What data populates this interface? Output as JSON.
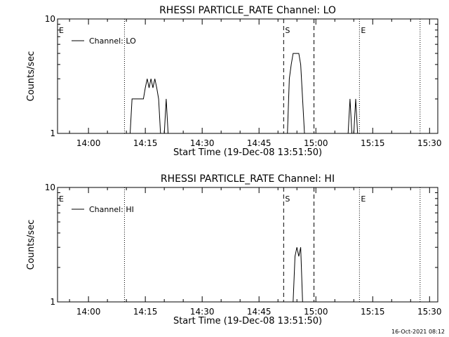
{
  "timestamp": "16-Oct-2021 08:12",
  "chart_data": [
    {
      "type": "line",
      "title": "RHESSI PARTICLE_RATE Channel: LO",
      "xlabel": "Start Time (19-Dec-08 13:51:50)",
      "ylabel": "Counts/sec",
      "yscale": "log",
      "ylim": [
        1,
        10
      ],
      "yticks": [
        {
          "value": 1,
          "label": "1"
        },
        {
          "value": 10,
          "label": "10"
        }
      ],
      "xlim": [
        "13:51:50",
        "15:32:10"
      ],
      "xticks": [
        "14:00",
        "14:15",
        "14:30",
        "14:45",
        "15:00",
        "15:15",
        "15:30"
      ],
      "legend": {
        "placement": "top-left",
        "entries": [
          "Channel: LO"
        ]
      },
      "series": [
        {
          "name": "Channel: LO",
          "x": [
            "14:11:00",
            "14:11:30",
            "14:13:30",
            "14:14:00",
            "14:14:30",
            "14:15:00",
            "14:15:30",
            "14:16:00",
            "14:16:30",
            "14:17:00",
            "14:17:30",
            "14:18:00",
            "14:18:30",
            "14:19:00",
            "14:19:30",
            "14:20:00",
            "14:20:30",
            "14:21:00",
            "14:21:30",
            "14:22:00",
            "14:22:30",
            "14:23:00",
            "14:52:30",
            "14:53:00",
            "14:53:30",
            "14:54:00",
            "14:54:30",
            "14:55:00",
            "14:55:30",
            "14:56:00",
            "14:56:30",
            "14:57:00",
            "14:57:30",
            "14:58:00",
            "14:58:30",
            "14:59:00",
            "14:59:30",
            "15:08:00",
            "15:08:30",
            "15:09:00",
            "15:09:30",
            "15:10:00",
            "15:10:30",
            "15:11:00"
          ],
          "y": [
            1,
            2,
            2,
            2,
            2,
            2.5,
            3,
            2.5,
            3,
            2.5,
            3,
            2.5,
            2,
            1,
            1,
            1,
            2,
            1,
            1,
            1,
            1,
            1,
            1,
            3,
            4,
            5,
            5,
            5,
            5,
            4,
            2,
            1,
            1,
            1,
            1,
            1,
            1,
            1,
            1,
            2,
            1,
            1,
            2,
            1
          ]
        }
      ],
      "markers": [
        {
          "time": "13:51:50",
          "style": "dotted",
          "label": "E"
        },
        {
          "time": "14:09:30",
          "style": "dotted",
          "label": ""
        },
        {
          "time": "14:51:30",
          "style": "dashed",
          "label": "S"
        },
        {
          "time": "14:59:30",
          "style": "dashed",
          "label": ""
        },
        {
          "time": "15:11:30",
          "style": "dotted",
          "label": "E"
        },
        {
          "time": "15:27:30",
          "style": "dotted",
          "label": ""
        }
      ]
    },
    {
      "type": "line",
      "title": "RHESSI PARTICLE_RATE Channel: HI",
      "xlabel": "Start Time (19-Dec-08 13:51:50)",
      "ylabel": "Counts/sec",
      "yscale": "log",
      "ylim": [
        1,
        10
      ],
      "yticks": [
        {
          "value": 1,
          "label": "1"
        },
        {
          "value": 10,
          "label": "10"
        }
      ],
      "xlim": [
        "13:51:50",
        "15:32:10"
      ],
      "xticks": [
        "14:00",
        "14:15",
        "14:30",
        "14:45",
        "15:00",
        "15:15",
        "15:30"
      ],
      "legend": {
        "placement": "top-left",
        "entries": [
          "Channel: HI"
        ]
      },
      "series": [
        {
          "name": "Channel: HI",
          "x": [
            "14:54:00",
            "14:54:30",
            "14:55:00",
            "14:55:30",
            "14:56:00",
            "14:56:30"
          ],
          "y": [
            1,
            2.5,
            3,
            2.5,
            3,
            1
          ]
        }
      ],
      "markers": [
        {
          "time": "13:51:50",
          "style": "dotted",
          "label": "E"
        },
        {
          "time": "14:09:30",
          "style": "dotted",
          "label": ""
        },
        {
          "time": "14:51:30",
          "style": "dashed",
          "label": "S"
        },
        {
          "time": "14:59:30",
          "style": "dashed",
          "label": ""
        },
        {
          "time": "15:11:30",
          "style": "dotted",
          "label": "E"
        },
        {
          "time": "15:27:30",
          "style": "dotted",
          "label": ""
        }
      ]
    }
  ]
}
